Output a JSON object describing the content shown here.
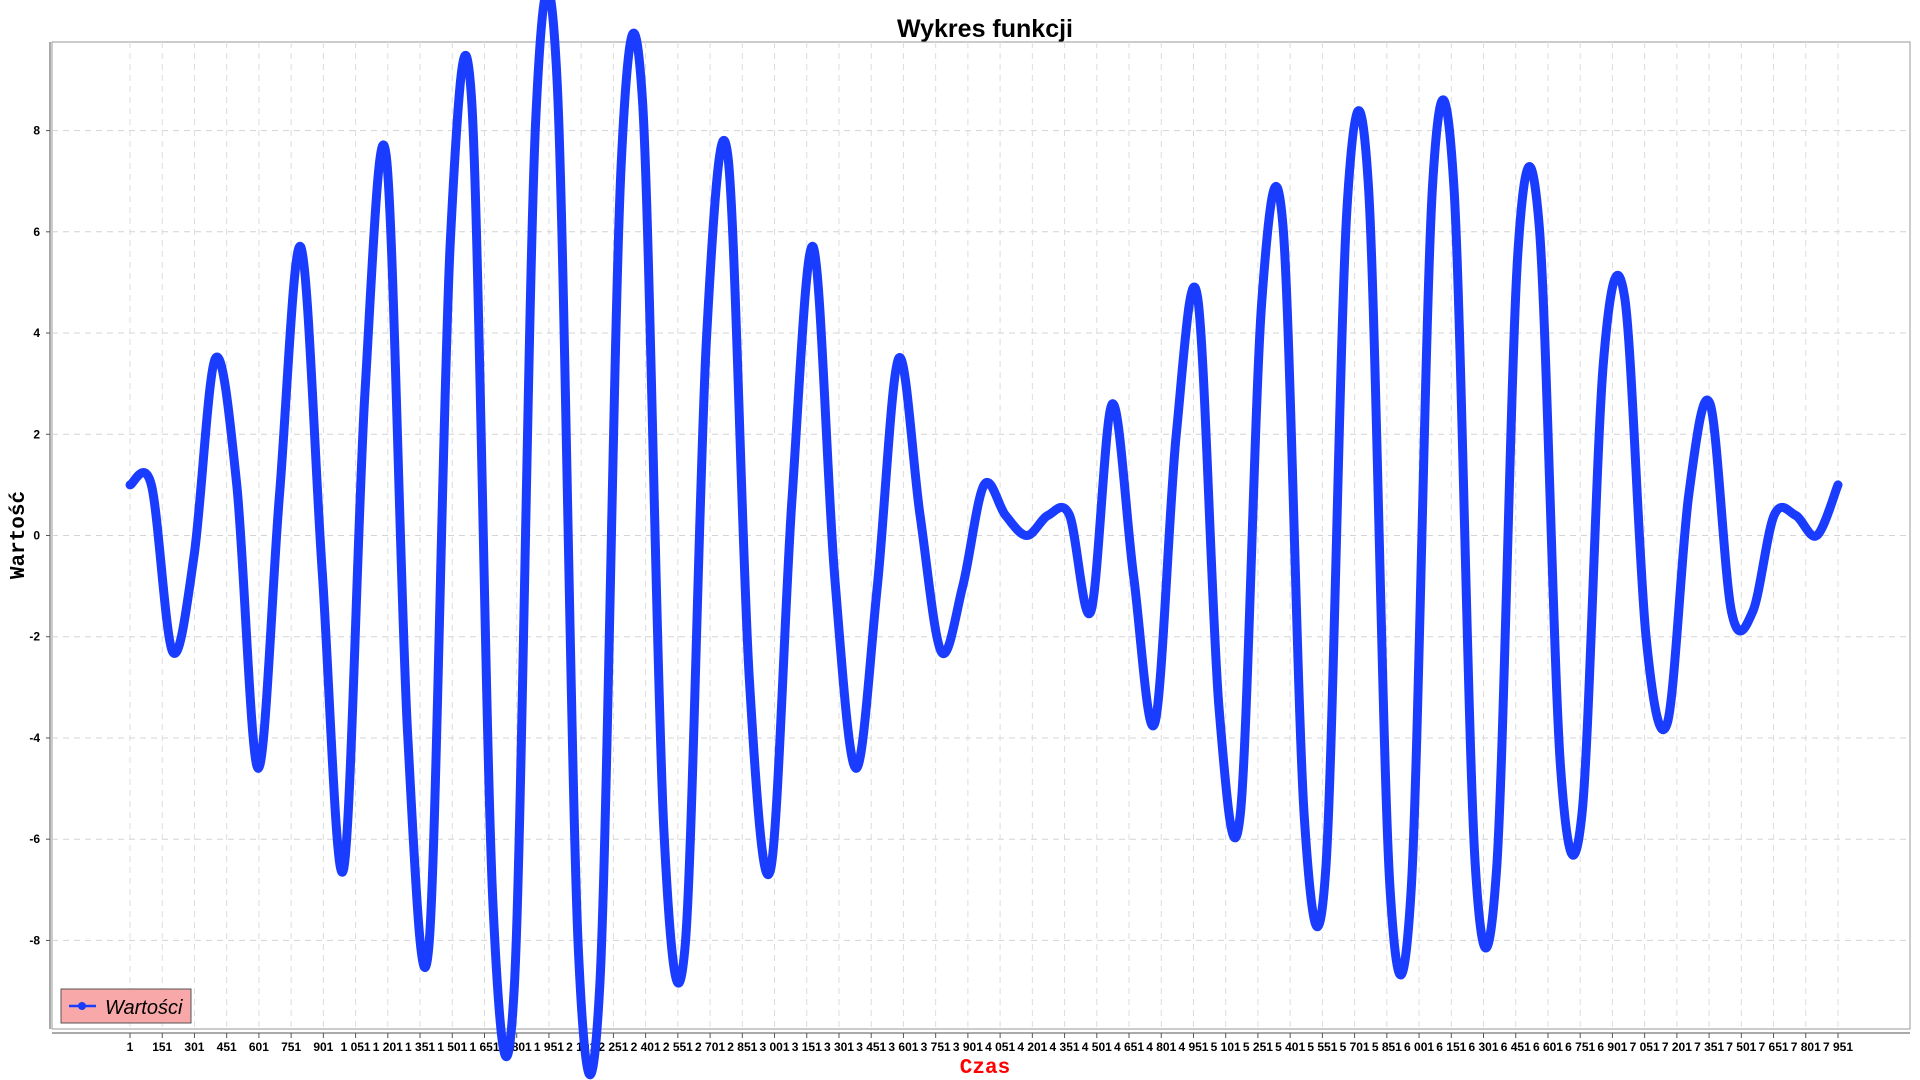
{
  "chart_data": {
    "type": "line",
    "title": "Wykres funkcji",
    "xlabel": "Czas",
    "ylabel": "Wartość",
    "ylim": [
      -9.75,
      9.75
    ],
    "y_ticks": [
      -8,
      -6,
      -4,
      -2,
      0,
      2,
      4,
      6,
      8
    ],
    "x_tick_labels": [
      "1",
      "151",
      "301",
      "451",
      "601",
      "751",
      "901",
      "1 051",
      "1 201",
      "1 351",
      "1 501",
      "1 651",
      "1 801",
      "1 951",
      "2 101",
      "2 251",
      "2 401",
      "2 551",
      "2 701",
      "2 851",
      "3 001",
      "3 151",
      "3 301",
      "3 451",
      "3 601",
      "3 751",
      "3 901",
      "4 051",
      "4 201",
      "4 351",
      "4 501",
      "4 651",
      "4 801",
      "4 951",
      "5 101",
      "5 251",
      "5 401",
      "5 551",
      "5 701",
      "5 851",
      "6 001",
      "6 151",
      "6 301",
      "6 451",
      "6 601",
      "6 751",
      "6 901",
      "7 051",
      "7 201",
      "7 351",
      "7 501",
      "7 651",
      "7 801",
      "7 951"
    ],
    "x_range": [
      1,
      8000
    ],
    "grid": true,
    "legend_position": "bottom-left",
    "series": [
      {
        "name": "Wartości",
        "color": "#1a3cff",
        "x": [
          1,
          101,
          201,
          301,
          401,
          501,
          601,
          701,
          801,
          901,
          1001,
          1101,
          1201,
          1301,
          1401,
          1501,
          1601,
          1701,
          1801,
          1901,
          2001,
          2101,
          2201,
          2301,
          2401,
          2501,
          2601,
          2701,
          2801,
          2901,
          3001,
          3101,
          3201,
          3301,
          3401,
          3501,
          3601,
          3701,
          3801,
          3901,
          4001,
          4101,
          4201,
          4301,
          4401,
          4501,
          4601,
          4701,
          4801,
          4901,
          5001,
          5101,
          5201,
          5301,
          5401,
          5501,
          5601,
          5701,
          5801,
          5901,
          6001,
          6101,
          6201,
          6301,
          6401,
          6501,
          6601,
          6701,
          6801,
          6901,
          7001,
          7101,
          7201,
          7301,
          7401,
          7501,
          7601,
          7701,
          7801,
          7901,
          8000
        ],
        "y": [
          1.0,
          1.0,
          -2.3,
          -0.4,
          3.5,
          1.0,
          -4.6,
          0.8,
          5.7,
          -0.7,
          -6.6,
          2.8,
          7.5,
          -3.9,
          -8.1,
          5.8,
          8.6,
          -7.3,
          -8.9,
          8.2,
          9.0,
          -8.2,
          -8.9,
          7.3,
          8.6,
          -5.8,
          -8.1,
          3.9,
          7.5,
          -2.8,
          -6.6,
          0.7,
          5.7,
          -0.8,
          -4.6,
          -1.0,
          3.5,
          0.4,
          -2.3,
          -1.0,
          1.0,
          0.4,
          0.0,
          0.4,
          0.4,
          -1.5,
          2.6,
          -0.8,
          -3.7,
          2.0,
          4.7,
          -3.4,
          -5.5,
          4.6,
          6.1,
          -5.6,
          -6.6,
          6.5,
          6.9,
          -6.9,
          -7.0,
          6.9,
          6.9,
          -6.5,
          -6.6,
          5.6,
          6.1,
          -4.6,
          -5.5,
          3.4,
          4.7,
          -2.0,
          -3.7,
          0.8,
          2.6,
          -1.5,
          -1.5,
          0.4,
          0.4,
          0.0,
          1.0
        ]
      }
    ]
  }
}
